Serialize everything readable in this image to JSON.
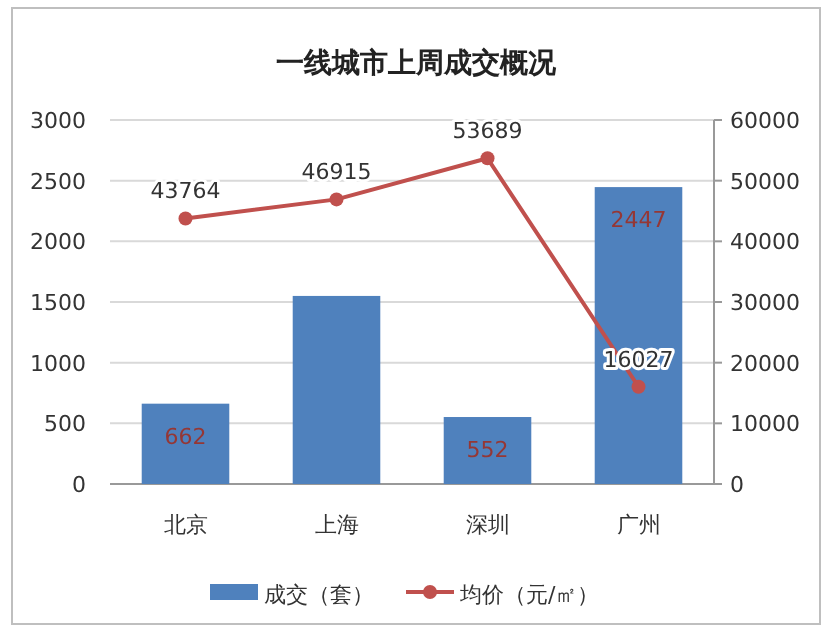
{
  "chart_data": {
    "type": "bar",
    "title": "一线城市上周成交概况",
    "categories": [
      "北京",
      "上海",
      "深圳",
      "广州"
    ],
    "series": [
      {
        "name": "成交（套）",
        "color": "#4f81bd",
        "values": [
          662,
          1550,
          552,
          2447
        ],
        "value_labels": [
          "662",
          null,
          "552",
          "2447"
        ]
      },
      {
        "name": "均价（元/㎡）",
        "type": "line",
        "axis": "y2",
        "color": "#c0504d",
        "values": [
          43764,
          46915,
          53689,
          16027
        ],
        "value_labels": [
          "43764",
          "46915",
          "53689",
          "16027"
        ]
      }
    ],
    "ylim": [
      0,
      3000
    ],
    "yticks": [
      0,
      500,
      1000,
      1500,
      2000,
      2500,
      3000
    ],
    "y2lim": [
      0,
      60000
    ],
    "y2ticks": [
      0,
      10000,
      20000,
      30000,
      40000,
      50000,
      60000
    ],
    "grid": "y",
    "legend": "bottom",
    "marker": "circle"
  }
}
